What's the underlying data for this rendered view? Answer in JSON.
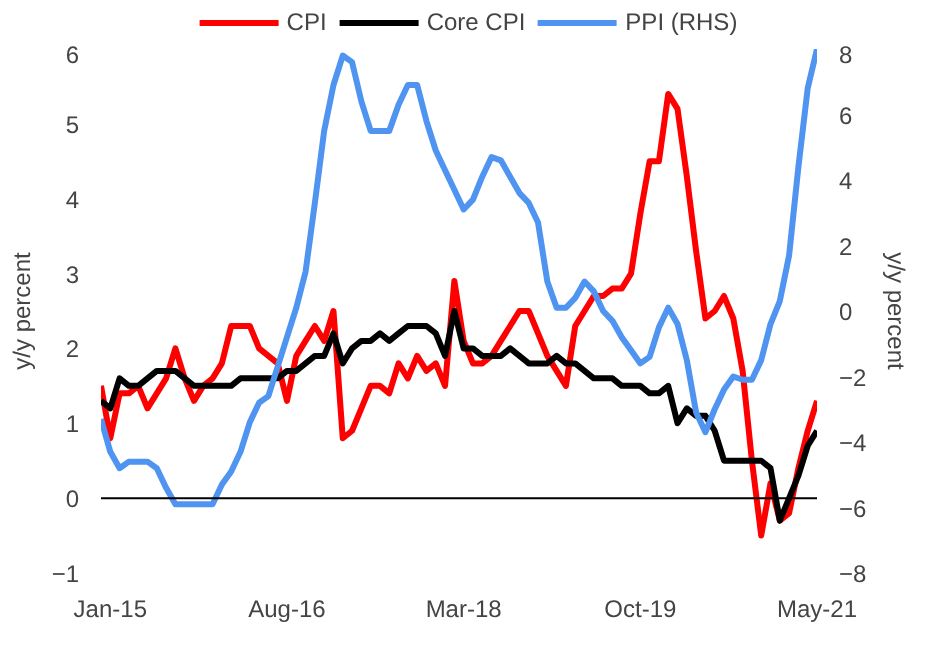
{
  "chart_data": {
    "type": "line",
    "ylabel": "y/y percent",
    "y2label": "y/y percent",
    "legend": "top",
    "grid": false,
    "x": [
      "2014-12",
      "2015-01",
      "2015-02",
      "2015-03",
      "2015-04",
      "2015-05",
      "2015-06",
      "2015-07",
      "2015-08",
      "2015-09",
      "2015-10",
      "2015-11",
      "2015-12",
      "2016-01",
      "2016-02",
      "2016-03",
      "2016-04",
      "2016-05",
      "2016-06",
      "2016-07",
      "2016-08",
      "2016-09",
      "2016-10",
      "2016-11",
      "2016-12",
      "2017-01",
      "2017-02",
      "2017-03",
      "2017-04",
      "2017-05",
      "2017-06",
      "2017-07",
      "2017-08",
      "2017-09",
      "2017-10",
      "2017-11",
      "2017-12",
      "2018-01",
      "2018-02",
      "2018-03",
      "2018-04",
      "2018-05",
      "2018-06",
      "2018-07",
      "2018-08",
      "2018-09",
      "2018-10",
      "2018-11",
      "2018-12",
      "2019-01",
      "2019-02",
      "2019-03",
      "2019-04",
      "2019-05",
      "2019-06",
      "2019-07",
      "2019-08",
      "2019-09",
      "2019-10",
      "2019-11",
      "2019-12",
      "2020-01",
      "2020-02",
      "2020-03",
      "2020-04",
      "2020-05",
      "2020-06",
      "2020-07",
      "2020-08",
      "2020-09",
      "2020-10",
      "2020-11",
      "2020-12",
      "2021-01",
      "2021-02",
      "2021-03",
      "2021-04",
      "2021-05"
    ],
    "xlim": [
      "2014-12",
      "2021-05"
    ],
    "xticks": [
      {
        "value": "2015-01",
        "label": "Jan-15"
      },
      {
        "value": "2016-08",
        "label": "Aug-16"
      },
      {
        "value": "2018-03",
        "label": "Mar-18"
      },
      {
        "value": "2019-10",
        "label": "Oct-19"
      },
      {
        "value": "2021-05",
        "label": "May-21"
      }
    ],
    "ylim": [
      -1,
      6
    ],
    "yticks": [
      -1,
      0,
      1,
      2,
      3,
      4,
      5,
      6
    ],
    "y2lim": [
      -8,
      8
    ],
    "y2ticks": [
      -8,
      -6,
      -4,
      -2,
      0,
      2,
      4,
      6,
      8
    ],
    "ref_lines": [
      {
        "axis": "y",
        "value": 0,
        "color": "#000000"
      }
    ],
    "series": [
      {
        "name": "CPI",
        "color": "#ff0000",
        "values": [
          1.5,
          0.8,
          1.4,
          1.4,
          1.5,
          1.2,
          1.4,
          1.6,
          2.0,
          1.6,
          1.3,
          1.5,
          1.6,
          1.8,
          2.3,
          2.3,
          2.3,
          2.0,
          1.9,
          1.8,
          1.3,
          1.9,
          2.1,
          2.3,
          2.1,
          2.5,
          0.8,
          0.9,
          1.2,
          1.5,
          1.5,
          1.4,
          1.8,
          1.6,
          1.9,
          1.7,
          1.8,
          1.5,
          2.9,
          2.1,
          1.8,
          1.8,
          1.9,
          2.1,
          2.3,
          2.5,
          2.5,
          2.2,
          1.9,
          1.7,
          1.5,
          2.3,
          2.5,
          2.7,
          2.7,
          2.8,
          2.8,
          3.0,
          3.8,
          4.5,
          4.5,
          5.4,
          5.2,
          4.3,
          3.3,
          2.4,
          2.5,
          2.7,
          2.4,
          1.7,
          0.5,
          -0.5,
          0.2,
          -0.3,
          -0.2,
          0.4,
          0.9,
          1.3
        ]
      },
      {
        "name": "Core CPI",
        "color": "#000000",
        "values": [
          1.3,
          1.2,
          1.6,
          1.5,
          1.5,
          1.6,
          1.7,
          1.7,
          1.7,
          1.6,
          1.5,
          1.5,
          1.5,
          1.5,
          1.5,
          1.6,
          1.6,
          1.6,
          1.6,
          1.6,
          1.7,
          1.7,
          1.8,
          1.9,
          1.9,
          2.2,
          1.8,
          2.0,
          2.1,
          2.1,
          2.2,
          2.1,
          2.2,
          2.3,
          2.3,
          2.3,
          2.2,
          1.9,
          2.5,
          2.0,
          2.0,
          1.9,
          1.9,
          1.9,
          2.0,
          1.9,
          1.8,
          1.8,
          1.8,
          1.9,
          1.8,
          1.8,
          1.7,
          1.6,
          1.6,
          1.6,
          1.5,
          1.5,
          1.5,
          1.4,
          1.4,
          1.5,
          1.0,
          1.2,
          1.1,
          1.1,
          0.9,
          0.5,
          0.5,
          0.5,
          0.5,
          0.5,
          0.4,
          -0.3,
          0.0,
          0.3,
          0.7,
          0.9
        ]
      },
      {
        "name": "PPI (RHS)",
        "color": "#4f94f0",
        "axis": "y2",
        "values": [
          -3.3,
          -4.3,
          -4.8,
          -4.6,
          -4.6,
          -4.6,
          -4.8,
          -5.4,
          -5.9,
          -5.9,
          -5.9,
          -5.9,
          -5.9,
          -5.3,
          -4.9,
          -4.3,
          -3.4,
          -2.8,
          -2.6,
          -1.7,
          -0.8,
          0.1,
          1.2,
          3.3,
          5.5,
          6.9,
          7.8,
          7.6,
          6.4,
          5.5,
          5.5,
          5.5,
          6.3,
          6.9,
          6.9,
          5.8,
          4.9,
          4.3,
          3.7,
          3.1,
          3.4,
          4.1,
          4.7,
          4.6,
          4.1,
          3.6,
          3.3,
          2.7,
          0.9,
          0.1,
          0.1,
          0.4,
          0.9,
          0.6,
          0.0,
          -0.3,
          -0.8,
          -1.2,
          -1.6,
          -1.4,
          -0.5,
          0.1,
          -0.4,
          -1.5,
          -3.1,
          -3.7,
          -3.0,
          -2.4,
          -2.0,
          -2.1,
          -2.1,
          -1.5,
          -0.4,
          0.3,
          1.7,
          4.4,
          6.8,
          8.0
        ]
      }
    ]
  }
}
